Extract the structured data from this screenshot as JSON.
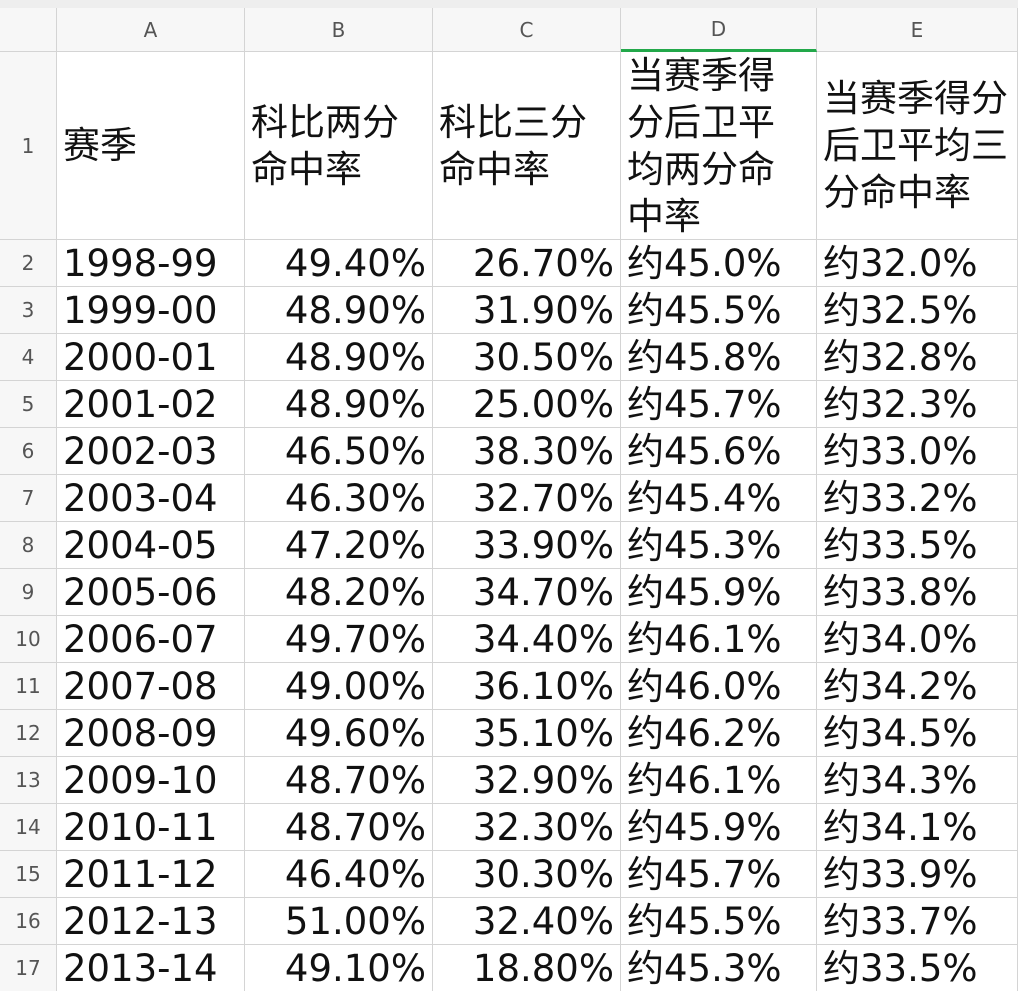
{
  "columns": [
    "A",
    "B",
    "C",
    "D",
    "E"
  ],
  "row_numbers": [
    "1",
    "2",
    "3",
    "4",
    "5",
    "6",
    "7",
    "8",
    "9",
    "10",
    "11",
    "12",
    "13",
    "14",
    "15",
    "16",
    "17"
  ],
  "rows": [
    [
      "赛季",
      "科比两分命中率",
      "科比三分命中率",
      "当赛季得分后卫平均两分命中率",
      "当赛季得分后卫平均三分命中率"
    ],
    [
      "1998-99",
      "49.40%",
      "26.70%",
      "约45.0%",
      "约32.0%"
    ],
    [
      "1999-00",
      "48.90%",
      "31.90%",
      "约45.5%",
      "约32.5%"
    ],
    [
      "2000-01",
      "48.90%",
      "30.50%",
      "约45.8%",
      "约32.8%"
    ],
    [
      "2001-02",
      "48.90%",
      "25.00%",
      "约45.7%",
      "约32.3%"
    ],
    [
      "2002-03",
      "46.50%",
      "38.30%",
      "约45.6%",
      "约33.0%"
    ],
    [
      "2003-04",
      "46.30%",
      "32.70%",
      "约45.4%",
      "约33.2%"
    ],
    [
      "2004-05",
      "47.20%",
      "33.90%",
      "约45.3%",
      "约33.5%"
    ],
    [
      "2005-06",
      "48.20%",
      "34.70%",
      "约45.9%",
      "约33.8%"
    ],
    [
      "2006-07",
      "49.70%",
      "34.40%",
      "约46.1%",
      "约34.0%"
    ],
    [
      "2007-08",
      "49.00%",
      "36.10%",
      "约46.0%",
      "约34.2%"
    ],
    [
      "2008-09",
      "49.60%",
      "35.10%",
      "约46.2%",
      "约34.5%"
    ],
    [
      "2009-10",
      "48.70%",
      "32.90%",
      "约46.1%",
      "约34.3%"
    ],
    [
      "2010-11",
      "48.70%",
      "32.30%",
      "约45.9%",
      "约34.1%"
    ],
    [
      "2011-12",
      "46.40%",
      "30.30%",
      "约45.7%",
      "约33.9%"
    ],
    [
      "2012-13",
      "51.00%",
      "32.40%",
      "约45.5%",
      "约33.7%"
    ],
    [
      "2013-14",
      "49.10%",
      "18.80%",
      "约45.3%",
      "约33.5%"
    ]
  ]
}
